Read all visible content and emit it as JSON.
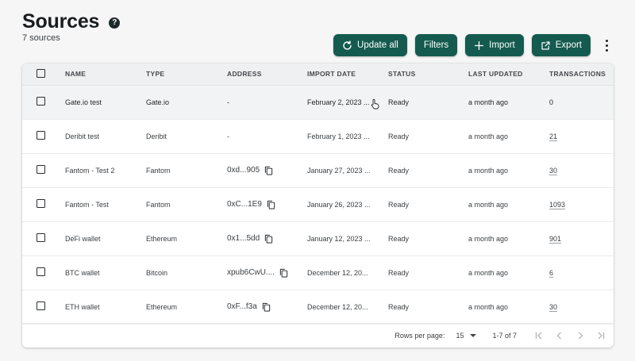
{
  "header": {
    "title": "Sources",
    "help_glyph": "?",
    "subtitle": "7 sources"
  },
  "toolbar": {
    "update_all": "Update all",
    "filters": "Filters",
    "import": "Import",
    "export": "Export"
  },
  "table": {
    "columns": [
      "NAME",
      "TYPE",
      "ADDRESS",
      "IMPORT DATE",
      "STATUS",
      "LAST UPDATED",
      "TRANSACTIONS"
    ],
    "rows": [
      {
        "name": "Gate.io test",
        "type": "Gate.io",
        "address": "-",
        "import_date": "February 2, 2023 ...",
        "status": "Ready",
        "last_updated": "a month ago",
        "transactions": "0"
      },
      {
        "name": "Deribit test",
        "type": "Deribit",
        "address": "-",
        "import_date": "February 1, 2023 ...",
        "status": "Ready",
        "last_updated": "a month ago",
        "transactions": "21"
      },
      {
        "name": "Fantom - Test 2",
        "type": "Fantom",
        "address": "0xd...905",
        "import_date": "January 27, 2023 ...",
        "status": "Ready",
        "last_updated": "a month ago",
        "transactions": "30"
      },
      {
        "name": "Fantom - Test",
        "type": "Fantom",
        "address": "0xC...1E9",
        "import_date": "January 26, 2023 ...",
        "status": "Ready",
        "last_updated": "a month ago",
        "transactions": "1093"
      },
      {
        "name": "DeFi wallet",
        "type": "Ethereum",
        "address": "0x1...5dd",
        "import_date": "January 12, 2023 ...",
        "status": "Ready",
        "last_updated": "a month ago",
        "transactions": "901"
      },
      {
        "name": "BTC wallet",
        "type": "Bitcoin",
        "address": "xpub6CwU....",
        "import_date": "December 12, 20...",
        "status": "Ready",
        "last_updated": "a month ago",
        "transactions": "6"
      },
      {
        "name": "ETH wallet",
        "type": "Ethereum",
        "address": "0xF...f3a",
        "import_date": "December 12, 20...",
        "status": "Ready",
        "last_updated": "a month ago",
        "transactions": "30"
      }
    ]
  },
  "footer": {
    "rows_per_page_label": "Rows per page:",
    "rows_per_page_value": "15",
    "range": "1-7 of 7"
  },
  "colors": {
    "primary_button": "#145a4f",
    "header_row": "#eef0f1",
    "hover_row": "#f2f3f4"
  }
}
